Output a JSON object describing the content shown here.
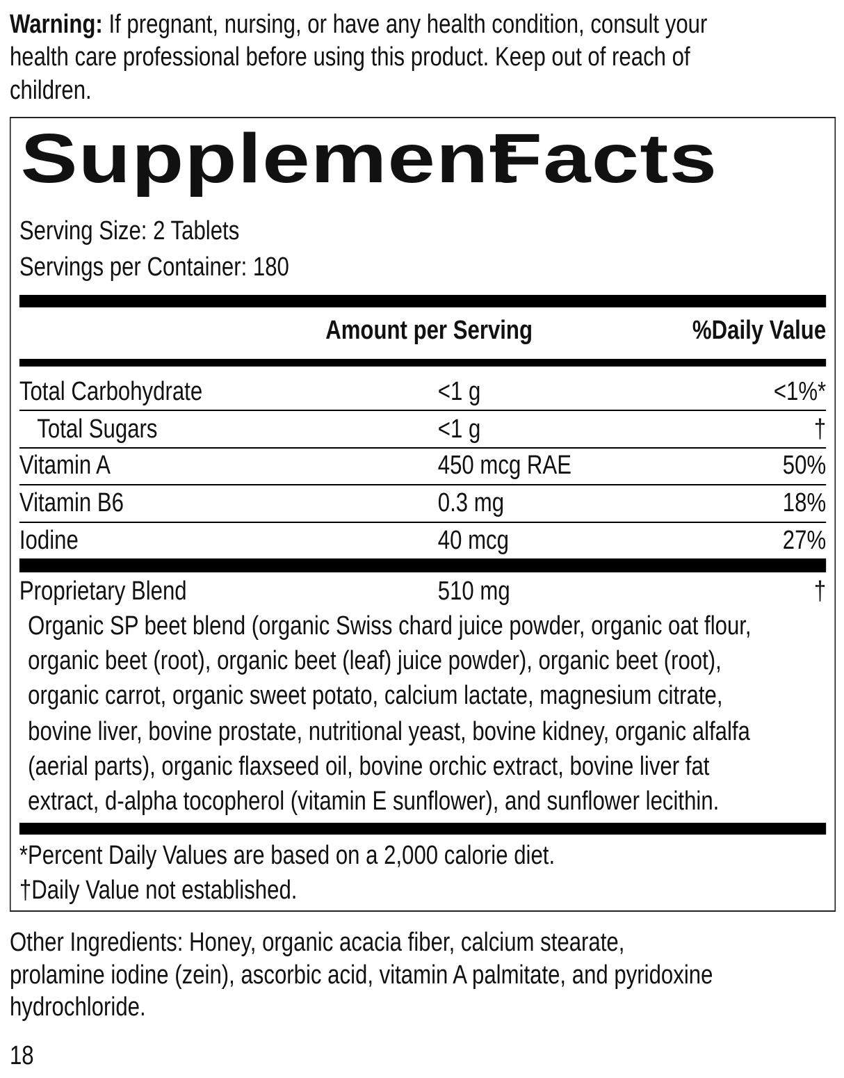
{
  "warning": {
    "label": "Warning:",
    "lines": [
      " If pregnant, nursing, or have any health condition, consult your",
      "health care professional before using this product. Keep out of reach of",
      "children."
    ]
  },
  "facts": {
    "title_word1": "Supplement",
    "title_word2": "Facts",
    "serving_size": "Serving Size: 2 Tablets",
    "servings_per_container": "Servings per Container: 180",
    "col_amount": "Amount per Serving",
    "col_dv": "%Daily Value",
    "rows": [
      {
        "name": "Total Carbohydrate",
        "amount": "<1 g",
        "dv": "<1%*"
      },
      {
        "name": "Total Sugars",
        "amount": "<1 g",
        "dv": "†"
      },
      {
        "name": "Vitamin A",
        "amount": "450 mcg RAE",
        "dv": "50%"
      },
      {
        "name": "Vitamin B6",
        "amount": "0.3 mg",
        "dv": "18%"
      },
      {
        "name": "Iodine",
        "amount": "40 mcg",
        "dv": "27%"
      }
    ],
    "blend": {
      "name": "Proprietary Blend",
      "amount": "510 mg",
      "dv": "†"
    },
    "blend_lines": [
      "Organic SP beet blend (organic Swiss chard juice powder, organic oat flour,",
      "organic beet (root), organic beet (leaf) juice powder), organic beet (root),",
      "organic carrot, organic sweet potato, calcium lactate, magnesium citrate,",
      "bovine liver, bovine prostate, nutritional yeast, bovine kidney, organic alfalfa",
      "(aerial parts), organic flaxseed oil, bovine orchic extract, bovine liver fat",
      "extract, d-alpha tocopherol (vitamin E sunflower), and sunflower lecithin."
    ],
    "footnote1": "*Percent Daily Values are based on a 2,000 calorie diet.",
    "footnote2": "†Daily Value not established."
  },
  "other_ingredients": {
    "lines": [
      "Other Ingredients: Honey, organic acacia fiber, calcium stearate,",
      "prolamine iodine (zein), ascorbic acid, vitamin A palmitate, and pyridoxine",
      "hydrochloride."
    ]
  },
  "page_number": "18"
}
